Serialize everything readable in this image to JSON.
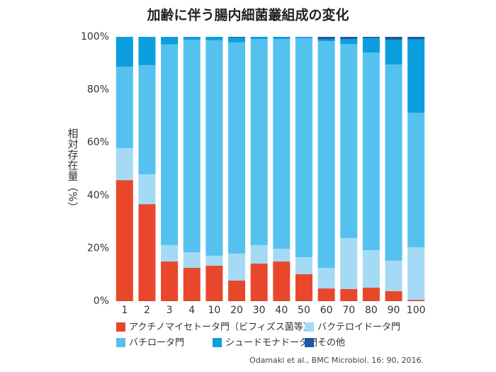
{
  "chart_data": {
    "type": "stacked-bar",
    "title": "加齢に伴う腸内細菌叢組成の変化",
    "y_label": "相対存在量（%）",
    "source": "Odamaki et al., BMC Microbiol. 16: 90, 2016.",
    "categories": [
      "1",
      "2",
      "3",
      "4",
      "10",
      "20",
      "30",
      "40",
      "50",
      "60",
      "70",
      "80",
      "90",
      "100"
    ],
    "series": [
      {
        "name": "アクチノマイセトータ門（ビフィズス菌等）",
        "color": "#e8472b",
        "values": [
          45.8,
          36.7,
          15.0,
          12.6,
          13.4,
          7.8,
          14.2,
          15.0,
          10.2,
          4.8,
          4.6,
          5.1,
          3.8,
          0.5
        ]
      },
      {
        "name": "バクテロイドータ門",
        "color": "#a4daf4",
        "values": [
          12.1,
          11.3,
          6.2,
          5.9,
          3.8,
          10.2,
          7.0,
          4.8,
          6.4,
          7.8,
          19.3,
          14.2,
          11.5,
          19.9
        ]
      },
      {
        "name": "バチロータ門",
        "color": "#55c1ef",
        "values": [
          30.8,
          41.3,
          75.9,
          80.4,
          81.5,
          79.9,
          78.0,
          79.4,
          82.9,
          85.8,
          73.4,
          74.8,
          74.2,
          50.9
        ]
      },
      {
        "name": "シュードモナドータ門",
        "color": "#0a9ede",
        "values": [
          11.3,
          10.7,
          2.9,
          1.1,
          1.3,
          1.8,
          0.8,
          0.8,
          0.5,
          0.6,
          1.9,
          5.4,
          9.4,
          27.7
        ]
      },
      {
        "name": "その他",
        "color": "#1a5aa0",
        "values": [
          0,
          0,
          0,
          0,
          0,
          0.3,
          0,
          0,
          0,
          1.0,
          0.8,
          0.5,
          1.1,
          1.0
        ]
      }
    ],
    "ylim": [
      0,
      100
    ],
    "yticks": [
      {
        "value": 0,
        "label": "0%"
      },
      {
        "value": 20,
        "label": "20%"
      },
      {
        "value": 40,
        "label": "40%"
      },
      {
        "value": 60,
        "label": "60%"
      },
      {
        "value": 80,
        "label": "80%"
      },
      {
        "value": 100,
        "label": "100%"
      }
    ],
    "grid": false
  }
}
